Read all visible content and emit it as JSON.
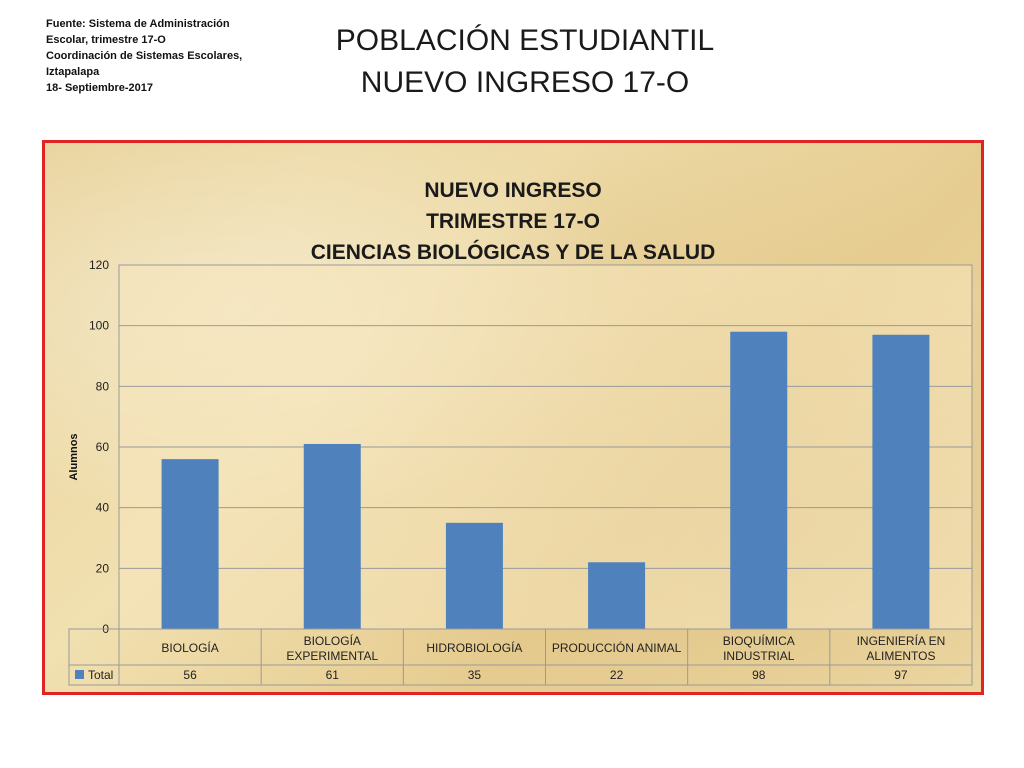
{
  "source": {
    "lines": [
      "Fuente: Sistema de Administración",
      "Escolar, trimestre 17-O",
      "Coordinación de Sistemas Escolares,",
      "Iztapalapa",
      "18- Septiembre-2017"
    ]
  },
  "page_title": {
    "line1": "POBLACIÓN ESTUDIANTIL",
    "line2": "NUEVO INGRESO 17-O"
  },
  "colors": {
    "bar": "#4f81bd",
    "frame_border": "#e02424"
  },
  "chart_data": {
    "type": "bar",
    "title": [
      "NUEVO INGRESO",
      "TRIMESTRE 17-O",
      "CIENCIAS BIOLÓGICAS Y DE LA SALUD"
    ],
    "ylabel": "Alumnos",
    "xlabel": "",
    "ylim": [
      0,
      120
    ],
    "yticks": [
      0,
      20,
      40,
      60,
      80,
      100,
      120
    ],
    "grid": true,
    "categories": [
      [
        "BIOLOGÍA"
      ],
      [
        "BIOLOGÍA",
        "EXPERIMENTAL"
      ],
      [
        "HIDROBIOLOGÍA"
      ],
      [
        "PRODUCCIÓN ANIMAL"
      ],
      [
        "BIOQUÍMICA",
        "INDUSTRIAL"
      ],
      [
        "INGENIERÍA EN",
        "ALIMENTOS"
      ]
    ],
    "series": [
      {
        "name": "Total",
        "values": [
          56,
          61,
          35,
          22,
          98,
          97
        ]
      }
    ],
    "legend": "data-table"
  }
}
